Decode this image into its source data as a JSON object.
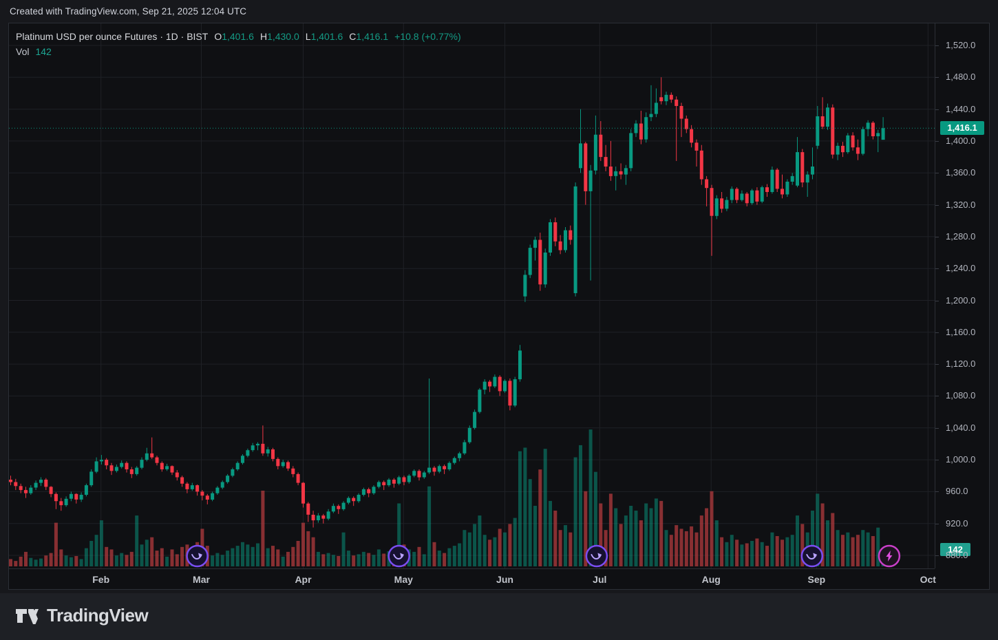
{
  "top_bar": {
    "attribution": "Created with TradingView.com, Sep 21, 2025 12:04 UTC"
  },
  "legend": {
    "title": "Platinum USD per ounce Futures · 1D · BIST",
    "ohlc": {
      "o_label": "O",
      "o_value": "1,401.6",
      "h_label": "H",
      "h_value": "1,430.0",
      "l_label": "L",
      "l_value": "1,401.6",
      "c_label": "C",
      "c_value": "1,416.1",
      "change": "+10.8 (+0.77%)"
    },
    "volume_label": "Vol",
    "volume_value": "142"
  },
  "price_axis": {
    "last_price_label": "1,416.1"
  },
  "volume_axis": {
    "last_volume_label": "142"
  },
  "footer": {
    "brand": "TradingView"
  },
  "colors": {
    "up": "#089981",
    "down": "#f23645",
    "volume_up": "rgba(8,153,129,0.5)",
    "volume_down": "rgba(178,58,62,0.75)",
    "grid": "#1f2126",
    "dotted_line": "#089981",
    "marker_ring": "#7a4df2",
    "marker_glyph": "#b9a3ff",
    "marker_fill": "#161130",
    "lightning_ring": "#c93fc9",
    "lightning_glyph": "#e04fe0",
    "lightning_fill": "#1d1220"
  },
  "chart_data": {
    "type": "candlestick",
    "title": "Platinum USD per ounce Futures, 1D, BIST",
    "last_price": 1416.1,
    "last_volume": 142,
    "ohlc_current": {
      "open": 1401.6,
      "high": 1430.0,
      "low": 1401.6,
      "close": 1416.1,
      "change": 10.8,
      "change_pct": 0.77
    },
    "y_axis": {
      "ticks": [
        1520,
        1480,
        1440,
        1400,
        1360,
        1320,
        1280,
        1240,
        1200,
        1160,
        1120,
        1080,
        1040,
        1000,
        960,
        920,
        880
      ],
      "grid": true
    },
    "x_axis": {
      "months": [
        {
          "label": "Feb",
          "index": 17.9
        },
        {
          "label": "Mar",
          "index": 37.8
        },
        {
          "label": "Apr",
          "index": 58.0
        },
        {
          "label": "May",
          "index": 77.9
        },
        {
          "label": "Jun",
          "index": 98.0
        },
        {
          "label": "Jul",
          "index": 116.8
        },
        {
          "label": "Aug",
          "index": 138.9
        },
        {
          "label": "Sep",
          "index": 159.8
        },
        {
          "label": "Oct",
          "index": 181.9
        }
      ]
    },
    "markers": [
      {
        "type": "contract-rollover",
        "index": 37.0
      },
      {
        "type": "contract-rollover",
        "index": 77.0
      },
      {
        "type": "contract-rollover",
        "index": 116.2
      },
      {
        "type": "contract-rollover",
        "index": 158.9
      },
      {
        "type": "lightning",
        "index": 174.2
      }
    ],
    "candles_format": [
      "open",
      "high",
      "low",
      "close",
      "volume"
    ],
    "candles": [
      [
        975,
        980,
        968,
        972,
        60
      ],
      [
        972,
        976,
        962,
        967,
        45
      ],
      [
        967,
        970,
        958,
        962,
        80
      ],
      [
        962,
        966,
        952,
        958,
        120
      ],
      [
        958,
        968,
        956,
        965,
        70
      ],
      [
        965,
        974,
        962,
        971,
        55
      ],
      [
        971,
        978,
        967,
        975,
        65
      ],
      [
        975,
        977,
        962,
        966,
        90
      ],
      [
        966,
        967,
        953,
        957,
        110
      ],
      [
        957,
        959,
        938,
        948,
        360
      ],
      [
        948,
        952,
        936,
        943,
        140
      ],
      [
        943,
        954,
        941,
        951,
        90
      ],
      [
        951,
        960,
        948,
        957,
        75
      ],
      [
        957,
        958,
        945,
        950,
        85
      ],
      [
        950,
        959,
        947,
        956,
        60
      ],
      [
        956,
        970,
        954,
        968,
        150
      ],
      [
        968,
        988,
        966,
        985,
        210
      ],
      [
        985,
        1003,
        983,
        998,
        260
      ],
      [
        998,
        1006,
        994,
        1000,
        380
      ],
      [
        1000,
        1002,
        988,
        993,
        160
      ],
      [
        993,
        996,
        981,
        986,
        140
      ],
      [
        986,
        994,
        984,
        991,
        90
      ],
      [
        991,
        999,
        989,
        996,
        110
      ],
      [
        996,
        998,
        984,
        988,
        95
      ],
      [
        988,
        991,
        977,
        982,
        120
      ],
      [
        982,
        992,
        980,
        990,
        420
      ],
      [
        990,
        1003,
        988,
        1000,
        180
      ],
      [
        1000,
        1015,
        998,
        1008,
        220
      ],
      [
        1008,
        1028,
        1001,
        1003,
        240
      ],
      [
        1003,
        1005,
        993,
        996,
        130
      ],
      [
        996,
        998,
        985,
        988,
        150
      ],
      [
        988,
        995,
        986,
        992,
        80
      ],
      [
        992,
        993,
        981,
        984,
        140
      ],
      [
        984,
        987,
        974,
        978,
        100
      ],
      [
        978,
        980,
        966,
        970,
        160
      ],
      [
        970,
        972,
        958,
        963,
        180
      ],
      [
        963,
        971,
        961,
        968,
        70
      ],
      [
        968,
        969,
        955,
        960,
        200
      ],
      [
        960,
        962,
        949,
        955,
        310
      ],
      [
        955,
        957,
        944,
        950,
        170
      ],
      [
        950,
        960,
        948,
        958,
        90
      ],
      [
        958,
        967,
        956,
        965,
        110
      ],
      [
        965,
        974,
        963,
        972,
        95
      ],
      [
        972,
        982,
        970,
        980,
        130
      ],
      [
        980,
        990,
        978,
        988,
        150
      ],
      [
        988,
        998,
        986,
        996,
        170
      ],
      [
        996,
        1007,
        994,
        1005,
        200
      ],
      [
        1005,
        1014,
        1003,
        1012,
        180
      ],
      [
        1012,
        1021,
        1010,
        1018,
        160
      ],
      [
        1018,
        1022,
        1012,
        1020,
        190
      ],
      [
        1020,
        1043,
        1005,
        1008,
        625
      ],
      [
        1008,
        1016,
        1004,
        1013,
        150
      ],
      [
        1013,
        1015,
        998,
        1001,
        170
      ],
      [
        1001,
        1003,
        988,
        992,
        140
      ],
      [
        992,
        1000,
        990,
        997,
        80
      ],
      [
        997,
        999,
        986,
        989,
        120
      ],
      [
        989,
        992,
        978,
        982,
        160
      ],
      [
        982,
        984,
        968,
        971,
        210
      ],
      [
        971,
        972,
        940,
        945,
        360
      ],
      [
        945,
        947,
        922,
        931,
        290
      ],
      [
        931,
        936,
        915,
        924,
        240
      ],
      [
        924,
        933,
        921,
        930,
        120
      ],
      [
        930,
        932,
        920,
        926,
        100
      ],
      [
        926,
        938,
        924,
        935,
        110
      ],
      [
        935,
        945,
        933,
        942,
        95
      ],
      [
        942,
        944,
        932,
        938,
        85
      ],
      [
        938,
        948,
        936,
        946,
        280
      ],
      [
        946,
        954,
        944,
        952,
        130
      ],
      [
        952,
        954,
        942,
        948,
        90
      ],
      [
        948,
        958,
        946,
        956,
        100
      ],
      [
        956,
        965,
        954,
        963,
        120
      ],
      [
        963,
        965,
        953,
        958,
        110
      ],
      [
        958,
        968,
        956,
        966,
        95
      ],
      [
        966,
        974,
        964,
        972,
        140
      ],
      [
        972,
        974,
        962,
        968,
        105
      ],
      [
        968,
        977,
        966,
        975,
        125
      ],
      [
        975,
        977,
        965,
        970,
        115
      ],
      [
        970,
        980,
        968,
        978,
        520
      ],
      [
        978,
        980,
        968,
        972,
        180
      ],
      [
        972,
        982,
        970,
        980,
        140
      ],
      [
        980,
        988,
        978,
        986,
        120
      ],
      [
        986,
        988,
        974,
        978,
        160
      ],
      [
        978,
        986,
        976,
        984,
        100
      ],
      [
        984,
        1102,
        982,
        990,
        660
      ],
      [
        990,
        992,
        980,
        985,
        200
      ],
      [
        985,
        994,
        983,
        992,
        130
      ],
      [
        992,
        994,
        982,
        988,
        110
      ],
      [
        988,
        998,
        986,
        996,
        150
      ],
      [
        996,
        1004,
        994,
        1002,
        170
      ],
      [
        1002,
        1010,
        998,
        1008,
        190
      ],
      [
        1008,
        1025,
        1006,
        1022,
        300
      ],
      [
        1022,
        1043,
        1020,
        1040,
        280
      ],
      [
        1040,
        1063,
        1038,
        1060,
        350
      ],
      [
        1060,
        1090,
        1058,
        1088,
        420
      ],
      [
        1088,
        1101,
        1082,
        1098,
        260
      ],
      [
        1098,
        1100,
        1085,
        1092,
        220
      ],
      [
        1092,
        1107,
        1090,
        1104,
        240
      ],
      [
        1104,
        1106,
        1080,
        1086,
        310
      ],
      [
        1086,
        1101,
        1084,
        1099,
        280
      ],
      [
        1099,
        1102,
        1062,
        1068,
        350
      ],
      [
        1068,
        1104,
        1066,
        1101,
        400
      ],
      [
        1101,
        1144,
        1098,
        1137,
        950
      ],
      [
        1205,
        1238,
        1198,
        1232,
        980
      ],
      [
        1232,
        1270,
        1228,
        1266,
        720
      ],
      [
        1266,
        1280,
        1250,
        1276,
        500
      ],
      [
        1276,
        1285,
        1212,
        1220,
        800
      ],
      [
        1220,
        1265,
        1216,
        1260,
        970
      ],
      [
        1260,
        1302,
        1256,
        1298,
        540
      ],
      [
        1298,
        1304,
        1268,
        1274,
        460
      ],
      [
        1274,
        1282,
        1258,
        1263,
        300
      ],
      [
        1263,
        1292,
        1260,
        1288,
        340
      ],
      [
        1288,
        1294,
        1270,
        1276,
        280
      ],
      [
        1209,
        1348,
        1205,
        1343,
        900
      ],
      [
        1366,
        1440,
        1360,
        1397,
        1000
      ],
      [
        1397,
        1399,
        1320,
        1337,
        620
      ],
      [
        1337,
        1370,
        1225,
        1363,
        1130
      ],
      [
        1363,
        1432,
        1358,
        1408,
        780
      ],
      [
        1408,
        1425,
        1375,
        1380,
        520
      ],
      [
        1380,
        1395,
        1362,
        1368,
        300
      ],
      [
        1368,
        1400,
        1350,
        1356,
        600
      ],
      [
        1356,
        1368,
        1338,
        1362,
        480
      ],
      [
        1362,
        1372,
        1352,
        1358,
        350
      ],
      [
        1358,
        1370,
        1345,
        1366,
        420
      ],
      [
        1366,
        1415,
        1362,
        1410,
        500
      ],
      [
        1410,
        1426,
        1405,
        1422,
        460
      ],
      [
        1422,
        1438,
        1396,
        1402,
        380
      ],
      [
        1402,
        1436,
        1398,
        1430,
        520
      ],
      [
        1430,
        1470,
        1425,
        1434,
        480
      ],
      [
        1434,
        1466,
        1430,
        1448,
        560
      ],
      [
        1455,
        1480,
        1446,
        1450,
        540
      ],
      [
        1450,
        1462,
        1445,
        1458,
        300
      ],
      [
        1458,
        1461,
        1448,
        1452,
        260
      ],
      [
        1452,
        1456,
        1375,
        1444,
        340
      ],
      [
        1444,
        1448,
        1405,
        1428,
        310
      ],
      [
        1428,
        1432,
        1410,
        1415,
        290
      ],
      [
        1415,
        1420,
        1392,
        1398,
        330
      ],
      [
        1398,
        1402,
        1368,
        1388,
        280
      ],
      [
        1388,
        1395,
        1345,
        1352,
        420
      ],
      [
        1352,
        1356,
        1318,
        1341,
        480
      ],
      [
        1341,
        1345,
        1256,
        1306,
        620
      ],
      [
        1306,
        1332,
        1302,
        1328,
        380
      ],
      [
        1328,
        1336,
        1310,
        1315,
        240
      ],
      [
        1315,
        1330,
        1312,
        1326,
        200
      ],
      [
        1326,
        1343,
        1322,
        1340,
        260
      ],
      [
        1340,
        1342,
        1322,
        1326,
        220
      ],
      [
        1326,
        1338,
        1324,
        1334,
        180
      ],
      [
        1334,
        1336,
        1318,
        1322,
        190
      ],
      [
        1322,
        1340,
        1320,
        1338,
        210
      ],
      [
        1338,
        1342,
        1320,
        1324,
        230
      ],
      [
        1324,
        1344,
        1322,
        1342,
        200
      ],
      [
        1342,
        1346,
        1330,
        1336,
        170
      ],
      [
        1336,
        1368,
        1334,
        1364,
        280
      ],
      [
        1364,
        1366,
        1336,
        1340,
        250
      ],
      [
        1340,
        1358,
        1328,
        1333,
        220
      ],
      [
        1333,
        1352,
        1330,
        1349,
        240
      ],
      [
        1349,
        1360,
        1345,
        1356,
        260
      ],
      [
        1344,
        1405,
        1342,
        1386,
        420
      ],
      [
        1386,
        1390,
        1342,
        1348,
        350
      ],
      [
        1348,
        1362,
        1330,
        1358,
        280
      ],
      [
        1358,
        1392,
        1352,
        1368,
        460
      ],
      [
        1394,
        1444,
        1390,
        1431,
        600
      ],
      [
        1431,
        1455,
        1415,
        1418,
        520
      ],
      [
        1418,
        1447,
        1414,
        1442,
        380
      ],
      [
        1442,
        1446,
        1378,
        1383,
        440
      ],
      [
        1383,
        1398,
        1376,
        1394,
        300
      ],
      [
        1394,
        1399,
        1380,
        1386,
        260
      ],
      [
        1386,
        1410,
        1384,
        1407,
        280
      ],
      [
        1407,
        1411,
        1388,
        1392,
        240
      ],
      [
        1392,
        1402,
        1376,
        1384,
        260
      ],
      [
        1384,
        1418,
        1382,
        1415,
        300
      ],
      [
        1415,
        1426,
        1406,
        1423,
        280
      ],
      [
        1423,
        1425,
        1402,
        1406,
        250
      ],
      [
        1406,
        1414,
        1386,
        1410,
        320
      ],
      [
        1401.6,
        1430,
        1401.6,
        1416.1,
        142
      ]
    ]
  }
}
